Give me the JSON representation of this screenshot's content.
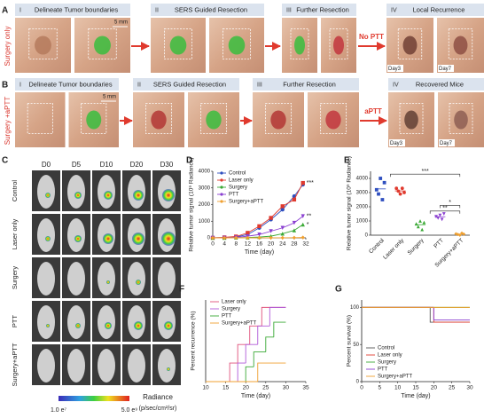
{
  "panels": {
    "A": {
      "letter": "A",
      "side_label": "Surgery only",
      "steps": [
        {
          "numeral": "I",
          "title": "Delineate Tumor boundaries"
        },
        {
          "numeral": "II",
          "title": "SERS Guided Resection"
        },
        {
          "numeral": "III",
          "title": "Further Resection"
        },
        {
          "numeral": "IV",
          "title": "Local Recurrence"
        }
      ],
      "scale_bar": "5 mm",
      "arrow_label": "No PTT",
      "days": [
        "Day3",
        "Day7"
      ]
    },
    "B": {
      "letter": "B",
      "side_label": "Surgery +aPTT",
      "steps": [
        {
          "numeral": "I",
          "title": "Delineate Tumor boundaries"
        },
        {
          "numeral": "II",
          "title": "SERS Guided Resection"
        },
        {
          "numeral": "III",
          "title": "Further Resection"
        },
        {
          "numeral": "IV",
          "title": "Recovered  Mice"
        }
      ],
      "scale_bar": "5 mm",
      "arrow_label": "aPTT",
      "days": [
        "Day3",
        "Day7"
      ]
    },
    "C": {
      "letter": "C",
      "columns": [
        "D0",
        "D5",
        "D10",
        "D20",
        "D30"
      ],
      "rows": [
        "Control",
        "Laser only",
        "Surgery",
        "PTT",
        "Surgery+aPTT"
      ],
      "colorbar_min": "1.0 e⁷",
      "colorbar_max": "5.0 e⁹",
      "colorbar_title": "Radiance",
      "colorbar_unit": "(p/sec/cm²/sr)"
    }
  },
  "chart_data": [
    {
      "type": "line",
      "label": "D",
      "x": [
        0,
        4,
        8,
        12,
        16,
        20,
        24,
        28,
        31
      ],
      "xlim": [
        0,
        32
      ],
      "xticks": [
        0,
        4,
        8,
        12,
        16,
        20,
        24,
        28,
        32
      ],
      "ylim": [
        0,
        4000
      ],
      "yticks": [
        0,
        1000,
        2000,
        3000,
        4000
      ],
      "xlabel": "Time (day)",
      "ylabel": "Relative tumor signal (10⁹ Radiance)",
      "legend": "upper left",
      "series": [
        {
          "name": "Control",
          "color": "#2f4fbf",
          "marker": "circle",
          "values": [
            0,
            20,
            50,
            200,
            600,
            1100,
            1700,
            2500,
            3200
          ]
        },
        {
          "name": "Laser only",
          "color": "#e03a2e",
          "marker": "square",
          "values": [
            0,
            30,
            80,
            300,
            700,
            1200,
            1900,
            2300,
            3300
          ],
          "significance": "***"
        },
        {
          "name": "Surgery",
          "color": "#3aa935",
          "marker": "triangle",
          "values": [
            0,
            0,
            10,
            20,
            50,
            100,
            250,
            450,
            800
          ],
          "significance": "*"
        },
        {
          "name": "PTT",
          "color": "#8a3fd1",
          "marker": "down",
          "values": [
            0,
            10,
            30,
            100,
            200,
            400,
            600,
            900,
            1300
          ],
          "significance": "**"
        },
        {
          "name": "Surgery+aPTT",
          "color": "#f0a030",
          "marker": "diamond",
          "values": [
            0,
            0,
            0,
            0,
            5,
            5,
            5,
            10,
            20
          ]
        }
      ]
    },
    {
      "type": "dot",
      "label": "E",
      "categories": [
        "Control",
        "Laser only",
        "Surgery",
        "PTT",
        "Surgery+aPTT"
      ],
      "colors": [
        "#2f4fbf",
        "#e03a2e",
        "#3aa935",
        "#8a3fd1",
        "#f0a030"
      ],
      "markers": [
        "square",
        "circle",
        "triangle",
        "down",
        "diamond"
      ],
      "values": [
        [
          3200,
          2900,
          4000,
          2500,
          3700
        ],
        [
          3300,
          3100,
          2900,
          3300,
          3000
        ],
        [
          800,
          600,
          1000,
          400,
          900
        ],
        [
          1300,
          1200,
          1400,
          1100,
          1500
        ],
        [
          100,
          50,
          0,
          150,
          80
        ]
      ],
      "ylim": [
        0,
        4500
      ],
      "yticks": [
        0,
        1000,
        2000,
        3000,
        4000
      ],
      "ylabel": "Relative tumor signal (10⁹ Radiance)",
      "significance": [
        "***",
        "*",
        "**"
      ]
    },
    {
      "type": "step",
      "label": "F",
      "xlim": [
        10,
        35
      ],
      "xticks": [
        10,
        15,
        20,
        25,
        30,
        35
      ],
      "ylim": [
        0,
        110
      ],
      "xlabel": "Time (day)",
      "ylabel": "Percent recurrence (%)",
      "legend": "upper left",
      "series": [
        {
          "name": "Laser only",
          "color": "#e0507a",
          "x": [
            10,
            16,
            18,
            21,
            24,
            30
          ],
          "values": [
            0,
            25,
            50,
            75,
            100,
            100
          ]
        },
        {
          "name": "Surgery",
          "color": "#b05ad8",
          "x": [
            10,
            18,
            20,
            23,
            26,
            30
          ],
          "values": [
            0,
            25,
            50,
            75,
            100,
            100
          ]
        },
        {
          "name": "PTT",
          "color": "#3aa935",
          "x": [
            10,
            20,
            22,
            25,
            27,
            30
          ],
          "values": [
            0,
            20,
            40,
            60,
            80,
            80
          ]
        },
        {
          "name": "Surgery+aPTT",
          "color": "#f0a030",
          "x": [
            10,
            23,
            30
          ],
          "values": [
            0,
            25,
            25
          ]
        }
      ]
    },
    {
      "type": "step",
      "label": "G",
      "xlim": [
        0,
        30
      ],
      "xticks": [
        0,
        5,
        10,
        15,
        20,
        25,
        30
      ],
      "ylim": [
        0,
        110
      ],
      "yticks": [
        0,
        50,
        100
      ],
      "xlabel": "Time (day)",
      "ylabel": "Percent survival (%)",
      "legend": "lower left",
      "series": [
        {
          "name": "Control",
          "color": "#555555",
          "x": [
            0,
            19,
            30
          ],
          "values": [
            100,
            80,
            80
          ]
        },
        {
          "name": "Laser only",
          "color": "#e03a2e",
          "x": [
            0,
            20,
            30
          ],
          "values": [
            100,
            80,
            80
          ]
        },
        {
          "name": "Surgery",
          "color": "#3aa935",
          "x": [
            0,
            30
          ],
          "values": [
            100,
            100
          ]
        },
        {
          "name": "PTT",
          "color": "#8a3fd1",
          "x": [
            0,
            20,
            30
          ],
          "values": [
            100,
            83,
            83
          ]
        },
        {
          "name": "Surgery+aPTT",
          "color": "#f0a030",
          "x": [
            0,
            30
          ],
          "values": [
            100,
            100
          ]
        }
      ]
    }
  ]
}
